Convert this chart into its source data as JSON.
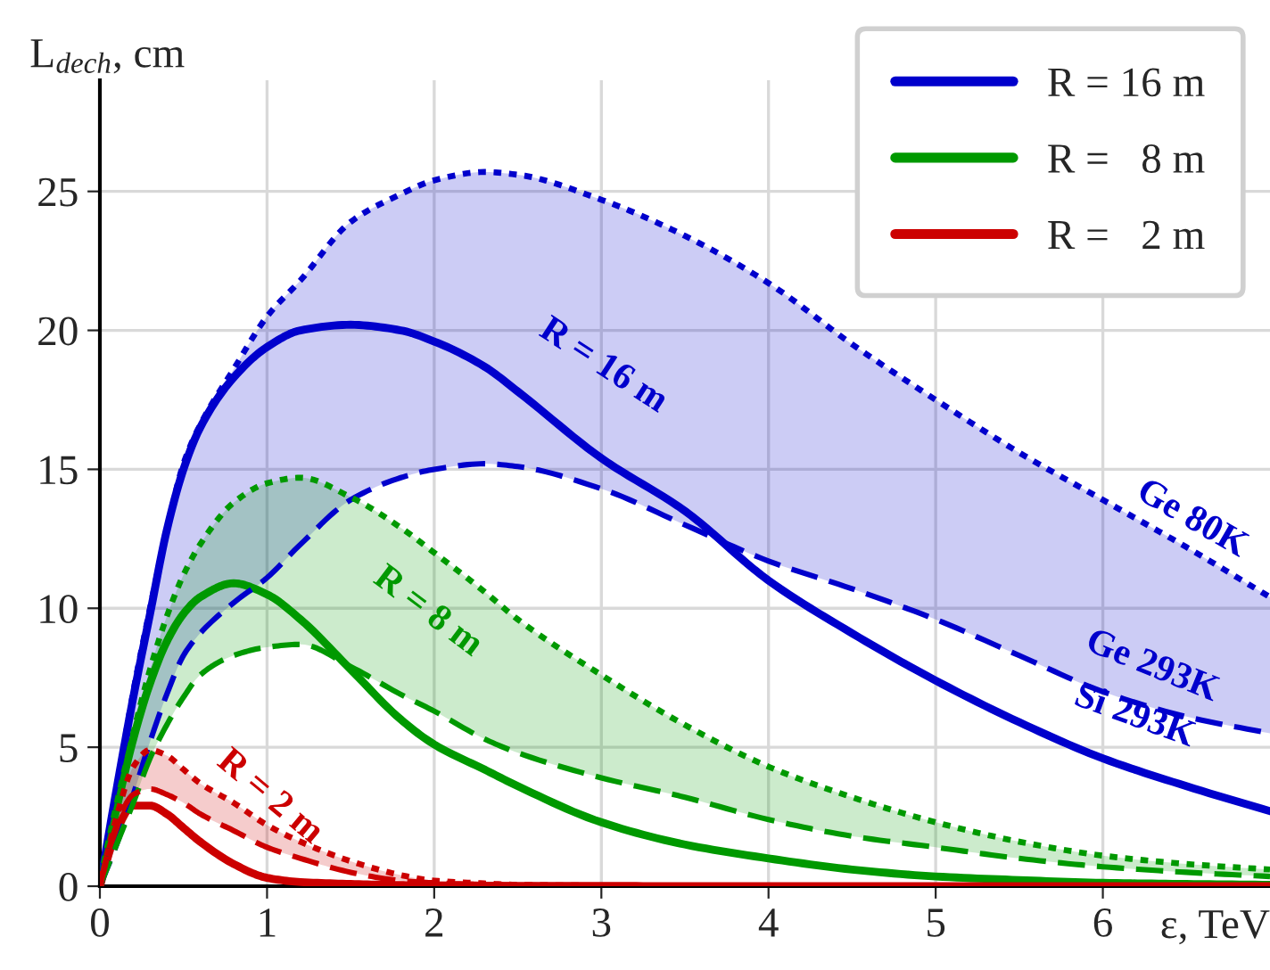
{
  "chart_data": {
    "type": "line",
    "ylabel": "L$_{dech}$, cm",
    "xlabel": "ε, TeV",
    "x": [
      0,
      0.1,
      0.2,
      0.3,
      0.4,
      0.5,
      0.6,
      0.8,
      1.0,
      1.2,
      1.5,
      1.8,
      2.0,
      2.3,
      2.5,
      3.0,
      3.5,
      4.0,
      4.5,
      5.0,
      5.5,
      6.0,
      6.5,
      7.0
    ],
    "xlim": [
      0,
      7
    ],
    "xticks": [
      0,
      1,
      2,
      3,
      4,
      5,
      6
    ],
    "ylim": [
      0,
      29
    ],
    "yticks": [
      0,
      5,
      10,
      15,
      20,
      25
    ],
    "grid": true,
    "legend": "top right",
    "series": [
      {
        "name": "R = 16 m",
        "color": "#0000cc",
        "line_style": "solid",
        "values": [
          0,
          3.5,
          6.8,
          9.8,
          12.8,
          15,
          16.5,
          18.3,
          19.4,
          20,
          20.2,
          20,
          19.6,
          18.7,
          17.8,
          15.4,
          13.5,
          11.0,
          9.1,
          7.4,
          5.9,
          4.6,
          3.6,
          2.7
        ]
      },
      {
        "name": "R =   8 m",
        "color": "#009900",
        "line_style": "solid",
        "values": [
          0,
          2.8,
          5.3,
          7.3,
          8.8,
          9.8,
          10.4,
          10.9,
          10.5,
          9.6,
          7.8,
          6.0,
          5.1,
          4.2,
          3.6,
          2.3,
          1.5,
          1.0,
          0.6,
          0.35,
          0.22,
          0.12,
          0.08,
          0.05
        ]
      },
      {
        "name": "R =   2 m",
        "color": "#cc0000",
        "line_style": "solid",
        "values": [
          0,
          2.0,
          2.9,
          2.9,
          2.6,
          2.1,
          1.6,
          0.8,
          0.3,
          0.15,
          0.08,
          0.04,
          0.03,
          0.02,
          0.01,
          0.01,
          0,
          0,
          0,
          0,
          0,
          0,
          0,
          0
        ]
      },
      {
        "color": "#0000cc",
        "line_style": "dashed",
        "values": [
          0,
          1.5,
          3.3,
          5.2,
          6.9,
          8.3,
          9.1,
          10.2,
          11.1,
          12.3,
          13.9,
          14.7,
          15.0,
          15.2,
          15.1,
          14.3,
          13.0,
          11.7,
          10.7,
          9.6,
          8.3,
          7.0,
          6.1,
          5.5
        ]
      },
      {
        "color": "#0000cc",
        "line_style": "dotted",
        "values": [
          0,
          3.5,
          7,
          10,
          12.8,
          15.2,
          16.6,
          18.6,
          20.5,
          21.8,
          23.9,
          24.9,
          25.4,
          25.7,
          25.6,
          24.7,
          23.4,
          21.7,
          19.5,
          17.5,
          15.6,
          13.9,
          12.2,
          10.4
        ],
        "lower": [
          0,
          1.5,
          3.3,
          5.2,
          6.9,
          8.3,
          9.1,
          10.2,
          11.1,
          12.3,
          13.9,
          14.7,
          15.0,
          15.2,
          15.1,
          14.3,
          13.0,
          11.7,
          10.7,
          9.6,
          8.3,
          7.0,
          6.1,
          5.5
        ],
        "upper": [
          0,
          3.5,
          7,
          10,
          12.8,
          15.2,
          16.6,
          18.6,
          20.5,
          21.8,
          23.9,
          24.9,
          25.4,
          25.7,
          25.6,
          24.7,
          23.4,
          21.7,
          19.5,
          17.5,
          15.6,
          13.9,
          12.2,
          10.4
        ]
      },
      {
        "color": "#009900",
        "line_style": "dashed",
        "values": [
          0,
          1.5,
          3.0,
          4.6,
          5.8,
          6.8,
          7.6,
          8.3,
          8.6,
          8.7,
          7.9,
          6.9,
          6.3,
          5.3,
          4.8,
          3.9,
          3.2,
          2.4,
          1.8,
          1.4,
          1.0,
          0.7,
          0.5,
          0.35
        ]
      },
      {
        "color": "#009900",
        "line_style": "dotted",
        "values": [
          0,
          2.8,
          5.5,
          7.8,
          9.7,
          11.2,
          12.3,
          13.8,
          14.5,
          14.7,
          14.0,
          12.9,
          12.0,
          10.6,
          9.6,
          7.6,
          5.8,
          4.3,
          3.2,
          2.3,
          1.6,
          1.1,
          0.8,
          0.6
        ],
        "lower": [
          0,
          1.5,
          3.0,
          4.6,
          5.8,
          6.8,
          7.6,
          8.3,
          8.6,
          8.7,
          7.9,
          6.9,
          6.3,
          5.3,
          4.8,
          3.9,
          3.2,
          2.4,
          1.8,
          1.4,
          1.0,
          0.7,
          0.5,
          0.35
        ],
        "upper": [
          0,
          2.8,
          5.5,
          7.8,
          9.7,
          11.2,
          12.3,
          13.8,
          14.5,
          14.7,
          14.0,
          12.9,
          12.0,
          10.6,
          9.6,
          7.6,
          5.8,
          4.3,
          3.2,
          2.3,
          1.6,
          1.1,
          0.8,
          0.6
        ]
      },
      {
        "color": "#cc0000",
        "line_style": "dashed",
        "values": [
          0,
          2.2,
          3.3,
          3.5,
          3.3,
          3.0,
          2.6,
          2.0,
          1.4,
          1.0,
          0.5,
          0.2,
          0.12,
          0.06,
          0.04,
          0.02,
          0,
          0,
          0,
          0,
          0,
          0,
          0,
          0
        ]
      },
      {
        "color": "#cc0000",
        "line_style": "dotted",
        "values": [
          0,
          2.5,
          4.3,
          4.9,
          4.7,
          4.2,
          3.7,
          3.0,
          2.2,
          1.6,
          0.9,
          0.4,
          0.2,
          0.1,
          0.05,
          0.02,
          0,
          0,
          0,
          0,
          0,
          0,
          0,
          0
        ],
        "lower": [
          0,
          2.2,
          3.3,
          3.5,
          3.3,
          3.0,
          2.6,
          2.0,
          1.4,
          1.0,
          0.5,
          0.2,
          0.12,
          0.06,
          0.04,
          0.02,
          0,
          0,
          0,
          0,
          0,
          0,
          0,
          0
        ],
        "upper": [
          0,
          2.5,
          4.3,
          4.9,
          4.7,
          4.2,
          3.7,
          3.0,
          2.2,
          1.6,
          0.9,
          0.4,
          0.2,
          0.1,
          0.05,
          0.02,
          0,
          0,
          0,
          0,
          0,
          0,
          0,
          0
        ]
      }
    ],
    "annotations": [
      "R = 16 m",
      "R = 8 m",
      "R = 2 m",
      "Ge 80K",
      "Ge 293K",
      "Si 293K"
    ]
  }
}
